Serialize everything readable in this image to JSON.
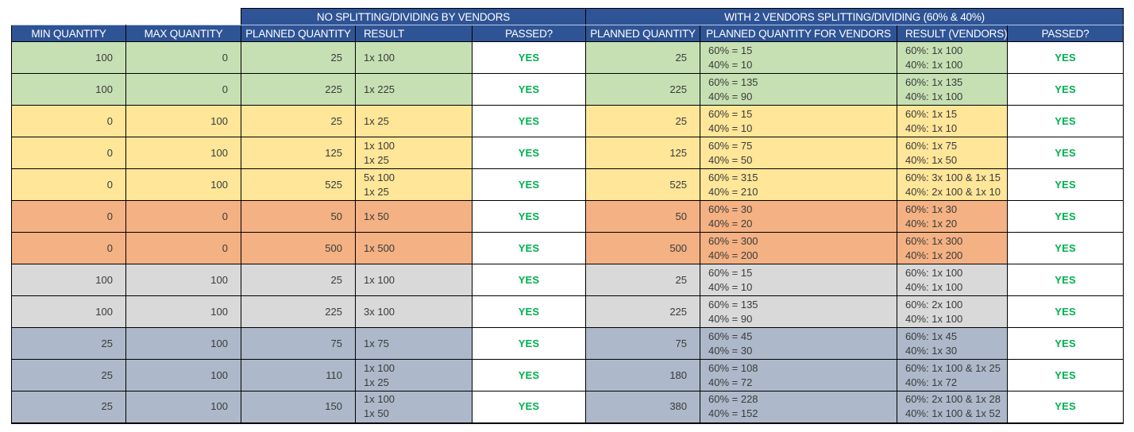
{
  "table": {
    "group_headers": [
      {
        "label": "NO SPLITTING/DIVIDING BY VENDORS"
      },
      {
        "label": "WITH 2 VENDORS SPLITTING/DIVIDING (60% & 40%)"
      }
    ],
    "columns": [
      "MIN QUANTITY",
      "MAX QUANTITY",
      "PLANNED QUANTITY",
      "RESULT",
      "PASSED?",
      "PLANNED QUANTITY",
      "PLANNED QUANTITY FOR VENDORS",
      "RESULT (VENDORS)",
      "PASSED?"
    ],
    "colors": {
      "header_bg": "#2f5496",
      "header_text": "#ffffff",
      "passed_text": "#00b050",
      "border": "#000000",
      "row_groups": {
        "green": "#c6e0b4",
        "yellow": "#ffe699",
        "orange": "#f4b183",
        "gray": "#d9d9d9",
        "bluegray": "#adb9ca"
      }
    },
    "rows": [
      {
        "group": "green",
        "min": "100",
        "max": "0",
        "planned": "25",
        "result": [
          "1x 100"
        ],
        "passed": "YES",
        "planned2": "25",
        "vendor_planned": [
          "60% = 15",
          "40% = 10"
        ],
        "vendor_result": [
          "60%: 1x 100",
          "40%: 1x 100"
        ],
        "passed2": "YES"
      },
      {
        "group": "green",
        "min": "100",
        "max": "0",
        "planned": "225",
        "result": [
          "1x 225"
        ],
        "passed": "YES",
        "planned2": "225",
        "vendor_planned": [
          "60% = 135",
          "40% = 90"
        ],
        "vendor_result": [
          "60%: 1x 135",
          "40%: 1x 100"
        ],
        "passed2": "YES"
      },
      {
        "group": "yellow",
        "min": "0",
        "max": "100",
        "planned": "25",
        "result": [
          "1x 25"
        ],
        "passed": "YES",
        "planned2": "25",
        "vendor_planned": [
          "60% = 15",
          "40% = 10"
        ],
        "vendor_result": [
          "60%: 1x 15",
          "40%: 1x 10"
        ],
        "passed2": "YES"
      },
      {
        "group": "yellow",
        "min": "0",
        "max": "100",
        "planned": "125",
        "result": [
          "1x 100",
          "1x 25"
        ],
        "passed": "YES",
        "planned2": "125",
        "vendor_planned": [
          "60% = 75",
          "40% = 50"
        ],
        "vendor_result": [
          "60%: 1x 75",
          "40%: 1x 50"
        ],
        "passed2": "YES"
      },
      {
        "group": "yellow",
        "min": "0",
        "max": "100",
        "planned": "525",
        "result": [
          "5x 100",
          "1x 25"
        ],
        "passed": "YES",
        "planned2": "525",
        "vendor_planned": [
          "60% = 315",
          "40% = 210"
        ],
        "vendor_result": [
          "60%: 3x 100 & 1x 15",
          "40%: 2x 100 & 1x 10"
        ],
        "passed2": "YES"
      },
      {
        "group": "orange",
        "min": "0",
        "max": "0",
        "planned": "50",
        "result": [
          "1x 50"
        ],
        "passed": "YES",
        "planned2": "50",
        "vendor_planned": [
          "60% = 30",
          "40% = 20"
        ],
        "vendor_result": [
          "60%: 1x 30",
          "40%: 1x 20"
        ],
        "passed2": "YES"
      },
      {
        "group": "orange",
        "min": "0",
        "max": "0",
        "planned": "500",
        "result": [
          "1x 500"
        ],
        "passed": "YES",
        "planned2": "500",
        "vendor_planned": [
          "60% = 300",
          "40% = 200"
        ],
        "vendor_result": [
          "60%: 1x 300",
          "40%: 1x 200"
        ],
        "passed2": "YES"
      },
      {
        "group": "gray",
        "min": "100",
        "max": "100",
        "planned": "25",
        "result": [
          "1x 100"
        ],
        "passed": "YES",
        "planned2": "25",
        "vendor_planned": [
          "60% = 15",
          "40% = 10"
        ],
        "vendor_result": [
          "60%: 1x 100",
          "40%: 1x 100"
        ],
        "passed2": "YES"
      },
      {
        "group": "gray",
        "min": "100",
        "max": "100",
        "planned": "225",
        "result": [
          "3x 100"
        ],
        "passed": "YES",
        "planned2": "225",
        "vendor_planned": [
          "60% = 135",
          "40% = 90"
        ],
        "vendor_result": [
          "60%: 2x 100",
          "40%: 1x 100"
        ],
        "passed2": "YES"
      },
      {
        "group": "bluegray",
        "min": "25",
        "max": "100",
        "planned": "75",
        "result": [
          "1x 75"
        ],
        "passed": "YES",
        "planned2": "75",
        "vendor_planned": [
          "60% = 45",
          "40% = 30"
        ],
        "vendor_result": [
          "60%: 1x 45",
          "40%: 1x 30"
        ],
        "passed2": "YES"
      },
      {
        "group": "bluegray",
        "min": "25",
        "max": "100",
        "planned": "110",
        "result": [
          "1x 100",
          "1x 25"
        ],
        "passed": "YES",
        "planned2": "180",
        "vendor_planned": [
          "60% = 108",
          "40% = 72"
        ],
        "vendor_result": [
          "60%: 1x 100 & 1x 25",
          "40%: 1x 72"
        ],
        "passed2": "YES"
      },
      {
        "group": "bluegray",
        "min": "25",
        "max": "100",
        "planned": "150",
        "result": [
          "1x 100",
          "1x 50"
        ],
        "passed": "YES",
        "planned2": "380",
        "vendor_planned": [
          "60% = 228",
          "40% = 152"
        ],
        "vendor_result": [
          "60%: 2x 100 & 1x 28",
          "40%: 1x 100 & 1x 52"
        ],
        "passed2": "YES"
      }
    ]
  }
}
